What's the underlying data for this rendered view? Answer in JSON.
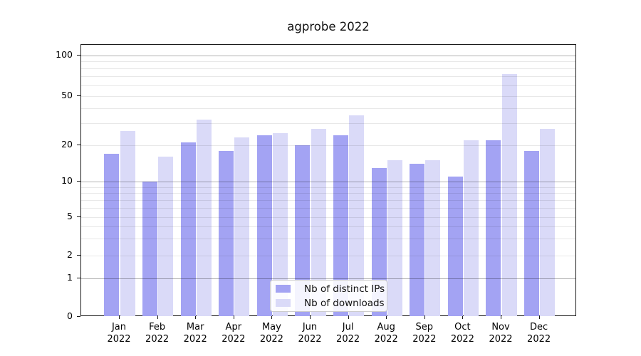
{
  "chart_data": {
    "type": "bar",
    "title": "agprobe 2022",
    "year": "2022",
    "months": [
      "Jan",
      "Feb",
      "Mar",
      "Apr",
      "May",
      "Jun",
      "Jul",
      "Aug",
      "Sep",
      "Oct",
      "Nov",
      "Dec"
    ],
    "categories": [
      "Jan 2022",
      "Feb 2022",
      "Mar 2022",
      "Apr 2022",
      "May 2022",
      "Jun 2022",
      "Jul 2022",
      "Aug 2022",
      "Sep 2022",
      "Oct 2022",
      "Nov 2022",
      "Dec 2022"
    ],
    "series": [
      {
        "name": "Nb of distinct IPs",
        "color": "#a3a3f3",
        "values": [
          17,
          10,
          21,
          18,
          24,
          20,
          24,
          13,
          14,
          11,
          22,
          18
        ]
      },
      {
        "name": "Nb of downloads",
        "color": "#dadaf8",
        "values": [
          26,
          16,
          32,
          23,
          25,
          27,
          35,
          15,
          15,
          22,
          73,
          27
        ]
      }
    ],
    "yscale": "symlog",
    "ylim": [
      0,
      120
    ],
    "ytick_labels": [
      "100",
      "50",
      "20",
      "10",
      "5",
      "2",
      "1",
      "0"
    ],
    "ytick_values": [
      100,
      50,
      20,
      10,
      5,
      2,
      1,
      0
    ],
    "major_gridlines": [
      1,
      10,
      100
    ],
    "minor_gridlines": [
      2,
      3,
      4,
      5,
      6,
      7,
      8,
      9,
      20,
      30,
      40,
      50,
      60,
      70,
      80,
      90
    ],
    "grid": "horizontal, major+minor, drawn over bars",
    "legend_position": "lower center",
    "colors": {
      "axis": "#1a1a1a",
      "grid_major": "rgba(0,0,0,0.30)",
      "grid_minor": "rgba(0,0,0,0.09)",
      "background": "#ffffff"
    }
  }
}
